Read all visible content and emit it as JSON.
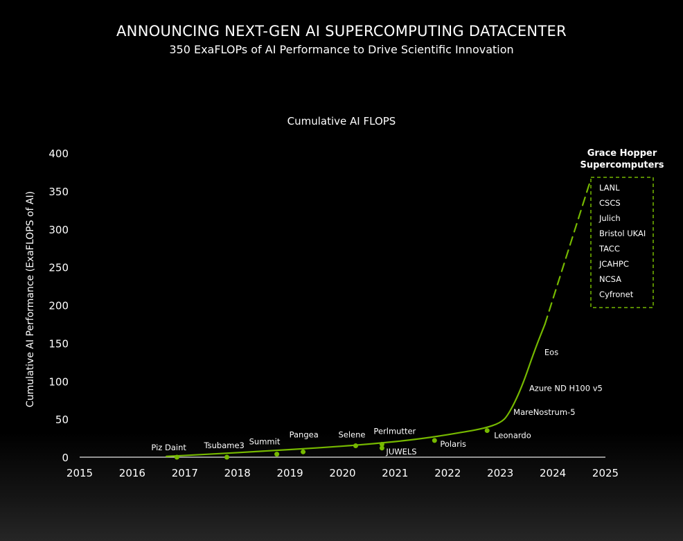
{
  "header": {
    "title": "ANNOUNCING NEXT-GEN AI SUPERCOMPUTING DATACENTER",
    "subtitle": "350 ExaFLOPs of AI Performance to Drive Scientific Innovation"
  },
  "chart_data": {
    "type": "line",
    "title": "Cumulative AI FLOPS",
    "xlabel": "",
    "ylabel": "Cumulative AI Performance (ExaFLOPS of AI)",
    "xlim": [
      2015,
      2025
    ],
    "ylim": [
      0,
      400
    ],
    "x_ticks": [
      2015,
      2016,
      2017,
      2018,
      2019,
      2020,
      2021,
      2022,
      2023,
      2024,
      2025
    ],
    "y_ticks": [
      0,
      50,
      100,
      150,
      200,
      250,
      300,
      350,
      400
    ],
    "grid": false,
    "line_color": "#76b900",
    "series": [
      {
        "style": "solid",
        "points": [
          [
            2016.65,
            1
          ],
          [
            2017.5,
            4
          ],
          [
            2018.5,
            8
          ],
          [
            2019.5,
            12
          ],
          [
            2020.5,
            17
          ],
          [
            2021.5,
            24
          ],
          [
            2022.3,
            33
          ],
          [
            2022.7,
            38
          ],
          [
            2023.0,
            45
          ],
          [
            2023.15,
            55
          ],
          [
            2023.4,
            90
          ],
          [
            2023.65,
            140
          ],
          [
            2023.85,
            175
          ]
        ]
      },
      {
        "style": "dashed",
        "points": [
          [
            2023.85,
            175
          ],
          [
            2024.72,
            365
          ]
        ]
      }
    ],
    "systems": [
      {
        "name": "Piz Daint",
        "x": 2016.85,
        "y": 0,
        "label_side": "left"
      },
      {
        "name": "Tsubame3",
        "x": 2017.8,
        "y": 0,
        "label_side": "left"
      },
      {
        "name": "Summit",
        "x": 2018.75,
        "y": 4,
        "label_side": "left"
      },
      {
        "name": "Pangea",
        "x": 2019.25,
        "y": 7,
        "label_side": "right"
      },
      {
        "name": "Selene",
        "x": 2020.25,
        "y": 15,
        "label_side": "left"
      },
      {
        "name": "Perlmutter",
        "x": 2020.75,
        "y": 17,
        "label_side": "right"
      },
      {
        "name": "JUWELS",
        "x": 2020.75,
        "y": 12,
        "label_side": "right"
      },
      {
        "name": "Polaris",
        "x": 2021.75,
        "y": 22,
        "label_side": "right"
      },
      {
        "name": "Leonardo",
        "x": 2022.75,
        "y": 35,
        "label_side": "right"
      },
      {
        "name": "MareNostrum-5",
        "x": 2023.25,
        "y": 60,
        "label_side": "right"
      },
      {
        "name": "Azure ND H100 v5",
        "x": 2023.55,
        "y": 97,
        "label_side": "right"
      },
      {
        "name": "Eos",
        "x": 2023.8,
        "y": 140,
        "label_side": "right"
      }
    ],
    "legend": {
      "title_line1": "Grace Hopper",
      "title_line2": "Supercomputers",
      "placement": "top-right",
      "items": [
        "LANL",
        "CSCS",
        "Julich",
        "Bristol UKAI",
        "TACC",
        "JCAHPC",
        "NCSA",
        "Cyfronet"
      ]
    }
  }
}
